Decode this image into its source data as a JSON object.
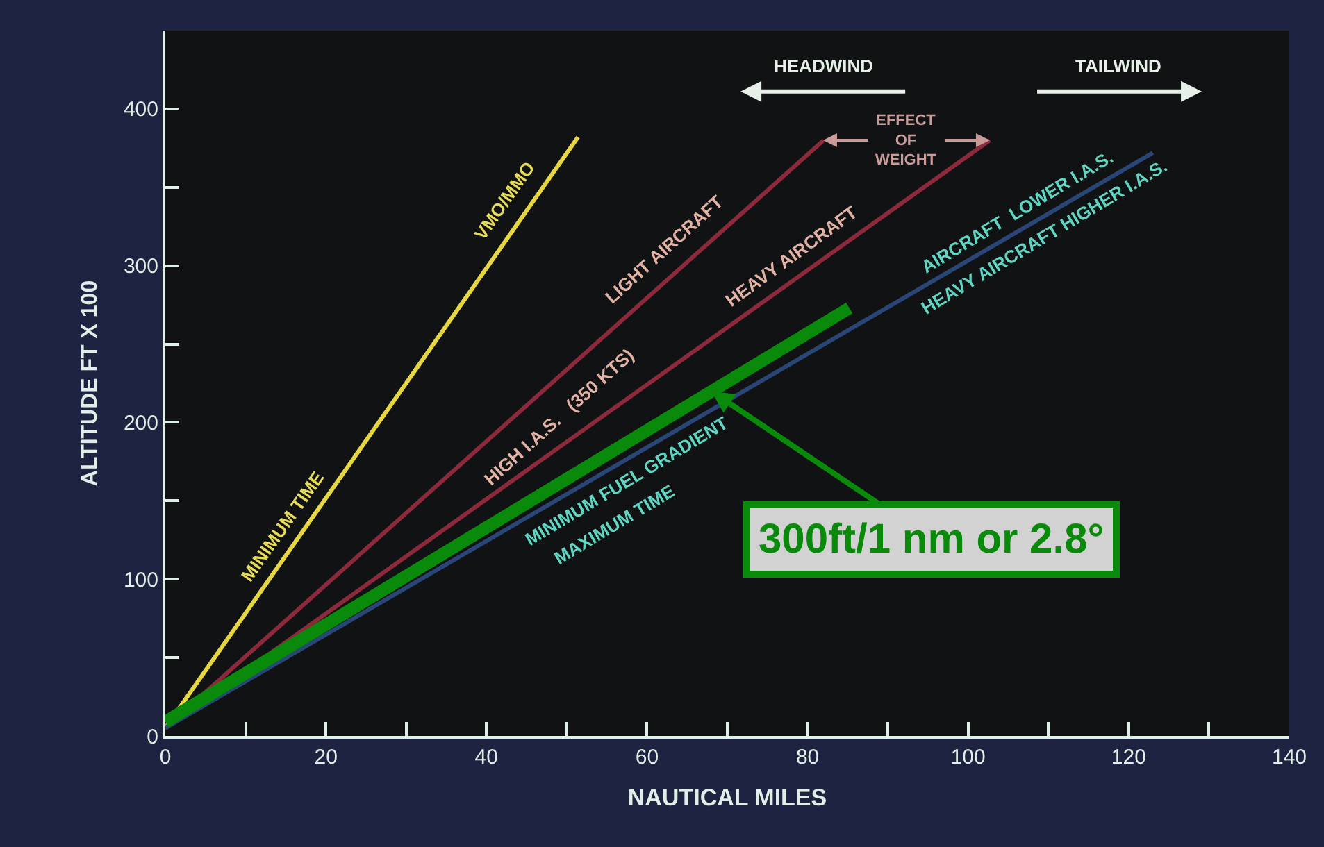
{
  "chart_data": {
    "type": "line",
    "xlabel": "NAUTICAL MILES",
    "ylabel": "ALTITUDE FT X 100",
    "xlim": [
      0,
      140
    ],
    "ylim": [
      0,
      450
    ],
    "xticks": [
      0,
      {
        "value": 10,
        "label": null
      },
      20,
      {
        "value": 30,
        "label": null
      },
      40,
      {
        "value": 50,
        "label": null
      },
      60,
      {
        "value": 70,
        "label": null
      },
      80,
      {
        "value": 90,
        "label": null
      },
      100,
      {
        "value": 110,
        "label": null
      },
      120,
      {
        "value": 130,
        "label": null
      },
      140
    ],
    "yticks": [
      0,
      {
        "value": 50,
        "label": null
      },
      100,
      {
        "value": 150,
        "label": null
      },
      200,
      {
        "value": 250,
        "label": null
      },
      300,
      {
        "value": 350,
        "label": null
      },
      400
    ],
    "grid": false,
    "marker": "none",
    "line_style": "solid",
    "series": [
      {
        "color": "#e6d640",
        "x": [
          0,
          51.4
        ],
        "values": [
          5,
          382
        ]
      },
      {
        "color": "#8c2a3c",
        "x": [
          0,
          82
        ],
        "values": [
          5,
          380
        ]
      },
      {
        "color": "#8c2a3c",
        "x": [
          0,
          102.7
        ],
        "values": [
          5,
          380
        ]
      },
      {
        "color": "#2a4676",
        "x": [
          0,
          123
        ],
        "values": [
          5,
          372
        ]
      },
      {
        "color": "#0a8a0a",
        "x": [
          0,
          85.2
        ],
        "values": [
          9,
          273
        ]
      }
    ],
    "annotations": [
      "MINIMUM TIME",
      "VMO/MMO",
      "LIGHT AIRCRAFT",
      "HIGH I.A.S.   (350 KTS)",
      "HEAVY AIRCRAFT",
      "AIRCRAFT  LOWER I.A.S.",
      "HEAVY AIRCRAFT HIGHER I.A.S.",
      "MINIMUM FUEL GRADIENT",
      "MAXIMUM TIME",
      "HEADWIND",
      "TAILWIND",
      {
        "text": "EFFECT OF WEIGHT",
        "x": 102.7,
        "y": 380
      },
      {
        "text": "300ft/1 nm or 2.8°",
        "x": 68,
        "y": 220
      }
    ]
  }
}
